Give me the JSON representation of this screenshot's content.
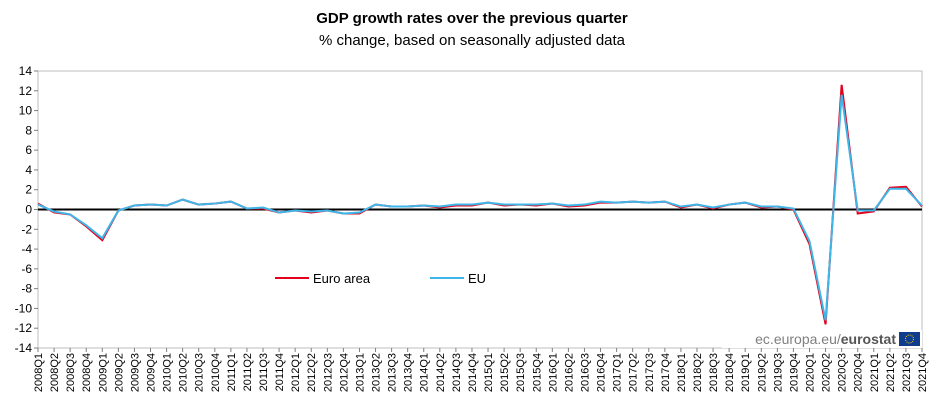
{
  "chart_data": {
    "type": "line",
    "title": "GDP growth rates over the previous quarter",
    "subtitle": "% change, based on seasonally adjusted data",
    "categories": [
      "2008Q1",
      "2008Q2",
      "2008Q3",
      "2008Q4",
      "2009Q1",
      "2009Q2",
      "2009Q3",
      "2009Q4",
      "2010Q1",
      "2010Q2",
      "2010Q3",
      "2010Q4",
      "2011Q1",
      "2011Q2",
      "2011Q3",
      "2011Q4",
      "2012Q1",
      "2012Q2",
      "2012Q3",
      "2012Q4",
      "2013Q1",
      "2013Q2",
      "2013Q3",
      "2013Q4",
      "2014Q1",
      "2014Q2",
      "2014Q3",
      "2014Q4",
      "2015Q1",
      "2015Q2",
      "2015Q3",
      "2015Q4",
      "2016Q1",
      "2016Q2",
      "2016Q3",
      "2016Q4",
      "2017Q1",
      "2017Q2",
      "2017Q3",
      "2017Q4",
      "2018Q1",
      "2018Q2",
      "2018Q3",
      "2018Q4",
      "2019Q1",
      "2019Q2",
      "2019Q3",
      "2019Q4",
      "2020Q1",
      "2020Q2",
      "2020Q3",
      "2020Q4",
      "2021Q1",
      "2021Q2",
      "2021Q3",
      "2021Q4"
    ],
    "series": [
      {
        "name": "Euro area",
        "color": "#e3001b",
        "values": [
          0.6,
          -0.3,
          -0.5,
          -1.7,
          -3.1,
          -0.1,
          0.4,
          0.5,
          0.4,
          1.0,
          0.5,
          0.6,
          0.8,
          0.1,
          0.1,
          -0.3,
          -0.1,
          -0.3,
          -0.1,
          -0.4,
          -0.4,
          0.5,
          0.3,
          0.3,
          0.4,
          0.2,
          0.4,
          0.4,
          0.7,
          0.4,
          0.5,
          0.4,
          0.6,
          0.3,
          0.4,
          0.7,
          0.7,
          0.8,
          0.7,
          0.8,
          0.2,
          0.5,
          0.1,
          0.5,
          0.7,
          0.2,
          0.3,
          0.0,
          -3.5,
          -11.6,
          12.6,
          -0.4,
          -0.2,
          2.2,
          2.3,
          0.3
        ]
      },
      {
        "name": "EU",
        "color": "#3fb6e8",
        "values": [
          0.5,
          -0.2,
          -0.5,
          -1.6,
          -2.9,
          -0.1,
          0.4,
          0.5,
          0.4,
          1.0,
          0.5,
          0.6,
          0.8,
          0.1,
          0.2,
          -0.3,
          -0.1,
          -0.2,
          -0.1,
          -0.4,
          -0.3,
          0.5,
          0.3,
          0.3,
          0.4,
          0.3,
          0.5,
          0.5,
          0.7,
          0.5,
          0.5,
          0.5,
          0.6,
          0.4,
          0.5,
          0.8,
          0.7,
          0.8,
          0.7,
          0.8,
          0.3,
          0.5,
          0.2,
          0.5,
          0.7,
          0.3,
          0.3,
          0.1,
          -3.2,
          -11.2,
          11.6,
          -0.1,
          -0.1,
          2.1,
          2.1,
          0.4
        ]
      }
    ],
    "ylim": [
      -14,
      14
    ],
    "yticks": [
      -14,
      -12,
      -10,
      -8,
      -6,
      -4,
      -2,
      0,
      2,
      4,
      6,
      8,
      10,
      12,
      14
    ],
    "grid": false,
    "source_prefix": "ec.europa.eu/",
    "source_brand": "eurostat"
  }
}
